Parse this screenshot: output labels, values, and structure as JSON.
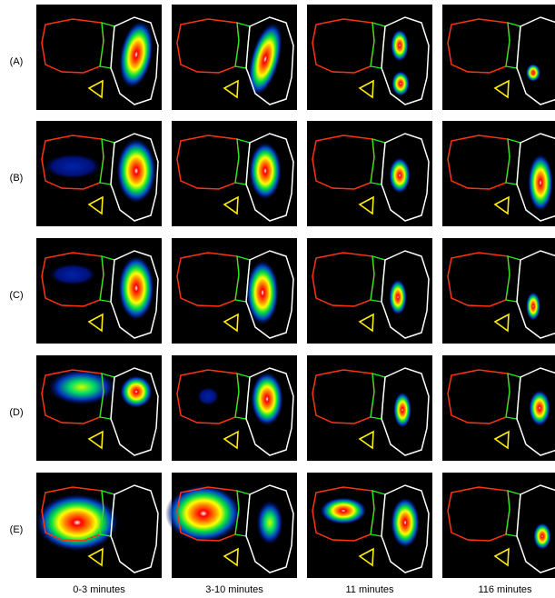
{
  "rows": [
    {
      "label": "(A)"
    },
    {
      "label": "(B)"
    },
    {
      "label": "(C)"
    },
    {
      "label": "(D)"
    },
    {
      "label": "(E)"
    }
  ],
  "columns": [
    {
      "label": "0-3 minutes"
    },
    {
      "label": "3-10 minutes"
    },
    {
      "label": "11 minutes"
    },
    {
      "label": "116 minutes"
    }
  ]
}
